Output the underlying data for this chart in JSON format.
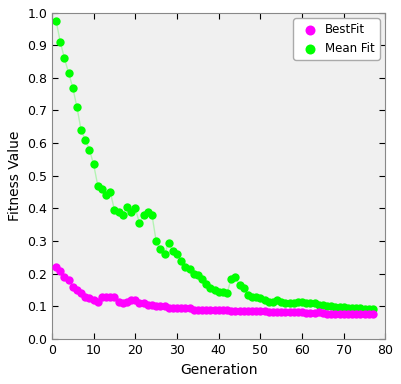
{
  "best_fit_x": [
    1,
    2,
    3,
    4,
    5,
    6,
    7,
    8,
    9,
    10,
    11,
    12,
    13,
    14,
    15,
    16,
    17,
    18,
    19,
    20,
    21,
    22,
    23,
    24,
    25,
    26,
    27,
    28,
    29,
    30,
    31,
    32,
    33,
    34,
    35,
    36,
    37,
    38,
    39,
    40,
    41,
    42,
    43,
    44,
    45,
    46,
    47,
    48,
    49,
    50,
    51,
    52,
    53,
    54,
    55,
    56,
    57,
    58,
    59,
    60,
    61,
    62,
    63,
    64,
    65,
    66,
    67,
    68,
    69,
    70,
    71,
    72,
    73,
    74,
    75,
    76,
    77
  ],
  "best_fit_y": [
    0.22,
    0.21,
    0.19,
    0.18,
    0.16,
    0.15,
    0.14,
    0.13,
    0.125,
    0.12,
    0.115,
    0.13,
    0.13,
    0.13,
    0.13,
    0.115,
    0.11,
    0.115,
    0.12,
    0.12,
    0.11,
    0.11,
    0.105,
    0.105,
    0.1,
    0.1,
    0.1,
    0.095,
    0.095,
    0.095,
    0.095,
    0.095,
    0.095,
    0.09,
    0.09,
    0.09,
    0.09,
    0.09,
    0.09,
    0.09,
    0.088,
    0.088,
    0.085,
    0.085,
    0.085,
    0.085,
    0.085,
    0.085,
    0.085,
    0.085,
    0.085,
    0.083,
    0.082,
    0.082,
    0.082,
    0.082,
    0.082,
    0.082,
    0.082,
    0.082,
    0.08,
    0.08,
    0.08,
    0.082,
    0.08,
    0.078,
    0.077,
    0.077,
    0.077,
    0.077,
    0.077,
    0.077,
    0.077,
    0.077,
    0.077,
    0.077,
    0.077
  ],
  "mean_fit_x": [
    1,
    2,
    3,
    4,
    5,
    6,
    7,
    8,
    9,
    10,
    11,
    12,
    13,
    14,
    15,
    16,
    17,
    18,
    19,
    20,
    21,
    22,
    23,
    24,
    25,
    26,
    27,
    28,
    29,
    30,
    31,
    32,
    33,
    34,
    35,
    36,
    37,
    38,
    39,
    40,
    41,
    42,
    43,
    44,
    45,
    46,
    47,
    48,
    49,
    50,
    51,
    52,
    53,
    54,
    55,
    56,
    57,
    58,
    59,
    60,
    61,
    62,
    63,
    64,
    65,
    66,
    67,
    68,
    69,
    70,
    71,
    72,
    73,
    74,
    75,
    76,
    77
  ],
  "mean_fit_y": [
    0.975,
    0.91,
    0.86,
    0.815,
    0.77,
    0.71,
    0.64,
    0.61,
    0.58,
    0.535,
    0.47,
    0.46,
    0.44,
    0.45,
    0.395,
    0.39,
    0.38,
    0.405,
    0.39,
    0.4,
    0.355,
    0.38,
    0.39,
    0.38,
    0.3,
    0.275,
    0.26,
    0.295,
    0.27,
    0.26,
    0.24,
    0.22,
    0.215,
    0.2,
    0.195,
    0.185,
    0.17,
    0.155,
    0.15,
    0.145,
    0.145,
    0.14,
    0.185,
    0.19,
    0.165,
    0.155,
    0.135,
    0.13,
    0.128,
    0.125,
    0.12,
    0.115,
    0.115,
    0.12,
    0.115,
    0.11,
    0.11,
    0.11,
    0.115,
    0.115,
    0.11,
    0.11,
    0.11,
    0.105,
    0.105,
    0.1,
    0.1,
    0.098,
    0.098,
    0.098,
    0.096,
    0.096,
    0.095,
    0.094,
    0.093,
    0.092,
    0.091
  ],
  "best_fit_color": "#FF00FF",
  "mean_fit_color": "#00FF00",
  "background_color": "#ffffff",
  "ax_facecolor": "#f0f0f0",
  "xlabel": "Generation",
  "ylabel": "Fitness Value",
  "xlim": [
    0,
    80
  ],
  "ylim": [
    0,
    1.0
  ],
  "xticks": [
    0,
    10,
    20,
    30,
    40,
    50,
    60,
    70,
    80
  ],
  "yticks": [
    0,
    0.1,
    0.2,
    0.3,
    0.4,
    0.5,
    0.6,
    0.7,
    0.8,
    0.9,
    1.0
  ],
  "legend_labels": [
    "BestFit",
    "Mean Fit"
  ],
  "marker_size": 36,
  "alpha_line": 0.25,
  "tick_fontsize": 9,
  "label_fontsize": 10
}
